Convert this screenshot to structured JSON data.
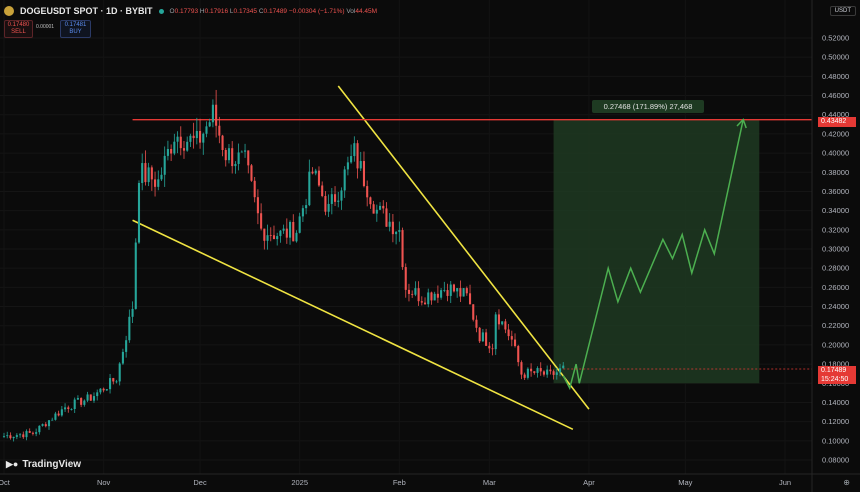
{
  "header": {
    "symbol": "DOGEUSDT SPOT · 1D · BYBIT",
    "open_k": "O",
    "open_v": "0.17793",
    "high_k": "H",
    "high_v": "0.17916",
    "low_k": "L",
    "low_v": "0.17345",
    "close_k": "C",
    "close_v": "0.17489",
    "change": "−0.00304 (−1.71%)",
    "vol_k": "Vol",
    "vol_v": "44.45M"
  },
  "trade": {
    "sell_price": "0.17480",
    "sell_label": "SELL",
    "spread": "0.00001",
    "buy_price": "0.17481",
    "buy_label": "BUY"
  },
  "currency_selector": "USDT",
  "measure_label": "0.27468 (171.89%) 27,468",
  "resistance_tag": "0.43482",
  "current_price_tag": "0.17489",
  "countdown_tag": "15:24:50",
  "logo": "TradingView",
  "chart_data": {
    "type": "candlestick",
    "symbol": "DOGEUSDT",
    "interval": "1D",
    "exchange": "BYBIT",
    "yaxis_ticks": [
      "0.52000",
      "0.50000",
      "0.48000",
      "0.46000",
      "0.44000",
      "0.42000",
      "0.40000",
      "0.38000",
      "0.36000",
      "0.34000",
      "0.32000",
      "0.30000",
      "0.28000",
      "0.26000",
      "0.24000",
      "0.22000",
      "0.20000",
      "0.18000",
      "0.16000",
      "0.14000",
      "0.12000",
      "0.10000",
      "0.08000"
    ],
    "xaxis_ticks": [
      "Oct",
      "Nov",
      "Dec",
      "2025",
      "Feb",
      "Mar",
      "Apr",
      "May",
      "Jun"
    ],
    "ylim": [
      0.08,
      0.52
    ],
    "resistance_level": 0.43482,
    "current_price": 0.17489,
    "colors": {
      "up": "#26a69a",
      "down": "#ef5350",
      "trendline": "#f0e442",
      "resistance": "#e53935",
      "projection": "#4caf50",
      "target_zone": "#1f3a22"
    },
    "candle_anchors": [
      [
        "2024-10-01",
        0.105
      ],
      [
        "2024-10-10",
        0.108
      ],
      [
        "2024-10-20",
        0.135
      ],
      [
        "2024-10-28",
        0.145
      ],
      [
        "2024-11-05",
        0.165
      ],
      [
        "2024-11-10",
        0.24
      ],
      [
        "2024-11-12",
        0.38
      ],
      [
        "2024-11-18",
        0.37
      ],
      [
        "2024-11-23",
        0.42
      ],
      [
        "2024-11-30",
        0.41
      ],
      [
        "2024-12-05",
        0.44
      ],
      [
        "2024-12-09",
        0.4
      ],
      [
        "2024-12-15",
        0.39
      ],
      [
        "2024-12-20",
        0.32
      ],
      [
        "2024-12-26",
        0.315
      ],
      [
        "2024-12-31",
        0.32
      ],
      [
        "2025-01-05",
        0.38
      ],
      [
        "2025-01-10",
        0.34
      ],
      [
        "2025-01-18",
        0.4
      ],
      [
        "2025-01-25",
        0.34
      ],
      [
        "2025-02-01",
        0.32
      ],
      [
        "2025-02-03",
        0.26
      ],
      [
        "2025-02-08",
        0.25
      ],
      [
        "2025-02-16",
        0.26
      ],
      [
        "2025-02-22",
        0.25
      ],
      [
        "2025-02-26",
        0.21
      ],
      [
        "2025-03-02",
        0.2
      ],
      [
        "2025-03-03",
        0.235
      ],
      [
        "2025-03-08",
        0.205
      ],
      [
        "2025-03-11",
        0.17
      ],
      [
        "2025-03-16",
        0.171
      ],
      [
        "2025-03-20",
        0.168
      ],
      [
        "2025-03-24",
        0.17489
      ]
    ],
    "upper_trendline": [
      [
        "2025-01-13",
        0.47
      ],
      [
        "2025-04-01",
        0.133
      ]
    ],
    "lower_trendline": [
      [
        "2024-11-10",
        0.33
      ],
      [
        "2025-03-27",
        0.112
      ]
    ],
    "projection_path": [
      [
        "2025-03-24",
        0.168
      ],
      [
        "2025-03-26",
        0.155
      ],
      [
        "2025-03-28",
        0.18
      ],
      [
        "2025-03-29",
        0.16
      ],
      [
        "2025-04-07",
        0.28
      ],
      [
        "2025-04-10",
        0.245
      ],
      [
        "2025-04-14",
        0.28
      ],
      [
        "2025-04-17",
        0.255
      ],
      [
        "2025-04-24",
        0.31
      ],
      [
        "2025-04-27",
        0.29
      ],
      [
        "2025-04-30",
        0.315
      ],
      [
        "2025-05-03",
        0.275
      ],
      [
        "2025-05-07",
        0.32
      ],
      [
        "2025-05-10",
        0.295
      ],
      [
        "2025-05-19",
        0.435
      ]
    ],
    "target_zone": {
      "from": "2025-03-21",
      "to": "2025-05-24",
      "low": 0.16,
      "high": 0.43482
    }
  }
}
